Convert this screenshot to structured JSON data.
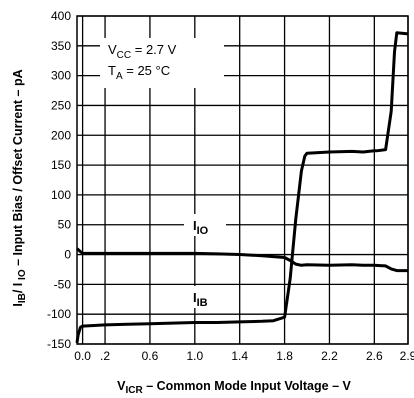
{
  "chart_data": {
    "type": "line",
    "title": "",
    "xlabel": {
      "main": "V",
      "sub": "ICR",
      "rest": " – Common Mode Input Voltage – V"
    },
    "ylabel": {
      "p1": "I",
      "s1": "IB",
      "p2": "/ I",
      "s2": " IO",
      "rest": " – Input Bias / Offset Current – pA"
    },
    "xlim": [
      -0.05,
      2.9
    ],
    "ylim": [
      -150,
      400
    ],
    "x_ticks": [
      {
        "v": 0.0,
        "label": "0.0"
      },
      {
        "v": 0.2,
        "label": ".2"
      },
      {
        "v": 0.6,
        "label": "0.6"
      },
      {
        "v": 1.0,
        "label": "1.0"
      },
      {
        "v": 1.4,
        "label": "1.4"
      },
      {
        "v": 1.8,
        "label": "1.8"
      },
      {
        "v": 2.2,
        "label": "2.2"
      },
      {
        "v": 2.6,
        "label": "2.6"
      },
      {
        "v": 2.9,
        "label": "2.9"
      }
    ],
    "y_ticks": [
      {
        "v": 400,
        "label": "400"
      },
      {
        "v": 350,
        "label": "350"
      },
      {
        "v": 300,
        "label": "300"
      },
      {
        "v": 250,
        "label": "250"
      },
      {
        "v": 200,
        "label": "200"
      },
      {
        "v": 150,
        "label": "150"
      },
      {
        "v": 100,
        "label": "100"
      },
      {
        "v": 50,
        "label": "50"
      },
      {
        "v": 0,
        "label": "0"
      },
      {
        "v": -50,
        "label": "-50"
      },
      {
        "v": -100,
        "label": "-100"
      },
      {
        "v": -150,
        "label": "-150"
      }
    ],
    "grid": true,
    "annotation": {
      "vcc_main": "V",
      "vcc_sub": "CC",
      "vcc_rest": " = 2.7 V",
      "ta_main": "T",
      "ta_sub": "A",
      "ta_rest": " = 25 °C"
    },
    "series": [
      {
        "name": "IIO",
        "label_main": "I",
        "label_sub": "IO",
        "x": [
          -0.05,
          -0.02,
          0.0,
          0.2,
          0.4,
          0.6,
          0.8,
          1.0,
          1.2,
          1.4,
          1.6,
          1.8,
          1.85,
          1.9,
          1.95,
          2.0,
          2.2,
          2.4,
          2.5,
          2.6,
          2.7,
          2.75,
          2.8,
          2.9
        ],
        "y": [
          10,
          5,
          2,
          2,
          2,
          2,
          2,
          2,
          1,
          0,
          -2,
          -5,
          -10,
          -16,
          -18,
          -17,
          -18,
          -17,
          -18,
          -18,
          -19,
          -24,
          -27,
          -27
        ]
      },
      {
        "name": "IIB",
        "label_main": "I",
        "label_sub": "IB",
        "x": [
          -0.05,
          -0.04,
          -0.02,
          0.0,
          0.2,
          0.4,
          0.6,
          0.8,
          1.0,
          1.2,
          1.4,
          1.6,
          1.7,
          1.8,
          1.85,
          1.9,
          1.95,
          1.98,
          2.0,
          2.2,
          2.4,
          2.5,
          2.6,
          2.62,
          2.7,
          2.75,
          2.78,
          2.8,
          2.9
        ],
        "y": [
          -148,
          -135,
          -122,
          -120,
          -118,
          -117,
          -116,
          -115,
          -114,
          -114,
          -113,
          -112,
          -111,
          -105,
          -40,
          60,
          140,
          165,
          170,
          172,
          173,
          172,
          174,
          174,
          176,
          240,
          340,
          372,
          370
        ]
      }
    ]
  }
}
